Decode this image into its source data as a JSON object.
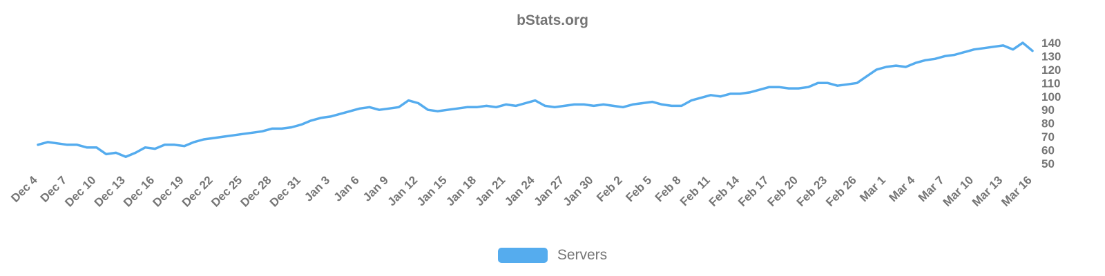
{
  "title": "bStats.org",
  "legend": {
    "items": [
      {
        "label": "Servers",
        "color": "#55ACEE"
      }
    ]
  },
  "chart_data": {
    "type": "line",
    "title": "bStats.org",
    "grid": false,
    "legend_position": "bottom",
    "line_color": "#55ACEE",
    "ylim": [
      50,
      140
    ],
    "y_ticks": [
      50,
      60,
      70,
      80,
      90,
      100,
      110,
      120,
      130,
      140
    ],
    "y_axis_side": "right",
    "x_label_every": 3,
    "x_labels_rotated_deg": -45,
    "x": [
      "Dec 4",
      "Dec 5",
      "Dec 6",
      "Dec 7",
      "Dec 8",
      "Dec 9",
      "Dec 10",
      "Dec 11",
      "Dec 12",
      "Dec 13",
      "Dec 14",
      "Dec 15",
      "Dec 16",
      "Dec 17",
      "Dec 18",
      "Dec 19",
      "Dec 20",
      "Dec 21",
      "Dec 22",
      "Dec 23",
      "Dec 24",
      "Dec 25",
      "Dec 26",
      "Dec 27",
      "Dec 28",
      "Dec 29",
      "Dec 30",
      "Dec 31",
      "Jan 1",
      "Jan 2",
      "Jan 3",
      "Jan 4",
      "Jan 5",
      "Jan 6",
      "Jan 7",
      "Jan 8",
      "Jan 9",
      "Jan 10",
      "Jan 11",
      "Jan 12",
      "Jan 13",
      "Jan 14",
      "Jan 15",
      "Jan 16",
      "Jan 17",
      "Jan 18",
      "Jan 19",
      "Jan 20",
      "Jan 21",
      "Jan 22",
      "Jan 23",
      "Jan 24",
      "Jan 25",
      "Jan 26",
      "Jan 27",
      "Jan 28",
      "Jan 29",
      "Jan 30",
      "Jan 31",
      "Feb 1",
      "Feb 2",
      "Feb 3",
      "Feb 4",
      "Feb 5",
      "Feb 6",
      "Feb 7",
      "Feb 8",
      "Feb 9",
      "Feb 10",
      "Feb 11",
      "Feb 12",
      "Feb 13",
      "Feb 14",
      "Feb 15",
      "Feb 16",
      "Feb 17",
      "Feb 18",
      "Feb 19",
      "Feb 20",
      "Feb 21",
      "Feb 22",
      "Feb 23",
      "Feb 24",
      "Feb 25",
      "Feb 26",
      "Feb 27",
      "Feb 28",
      "Mar 1",
      "Mar 2",
      "Mar 3",
      "Mar 4",
      "Mar 5",
      "Mar 6",
      "Mar 7",
      "Mar 8",
      "Mar 9",
      "Mar 10",
      "Mar 11",
      "Mar 12",
      "Mar 13",
      "Mar 14",
      "Mar 15",
      "Mar 16"
    ],
    "series": [
      {
        "name": "Servers",
        "color": "#55ACEE",
        "values": [
          64,
          66,
          65,
          64,
          64,
          62,
          62,
          57,
          58,
          55,
          58,
          62,
          61,
          64,
          64,
          63,
          66,
          68,
          69,
          70,
          71,
          72,
          73,
          74,
          76,
          76,
          77,
          79,
          82,
          84,
          85,
          87,
          89,
          91,
          92,
          90,
          91,
          92,
          97,
          95,
          90,
          89,
          90,
          91,
          92,
          92,
          93,
          92,
          94,
          93,
          95,
          97,
          93,
          92,
          93,
          94,
          94,
          93,
          94,
          93,
          92,
          94,
          95,
          96,
          94,
          93,
          93,
          97,
          99,
          101,
          100,
          102,
          102,
          103,
          105,
          107,
          107,
          106,
          106,
          107,
          110,
          110,
          108,
          109,
          110,
          115,
          120,
          122,
          123,
          122,
          125,
          127,
          128,
          130,
          131,
          133,
          135,
          136,
          137,
          138,
          135,
          140,
          134
        ]
      }
    ]
  }
}
